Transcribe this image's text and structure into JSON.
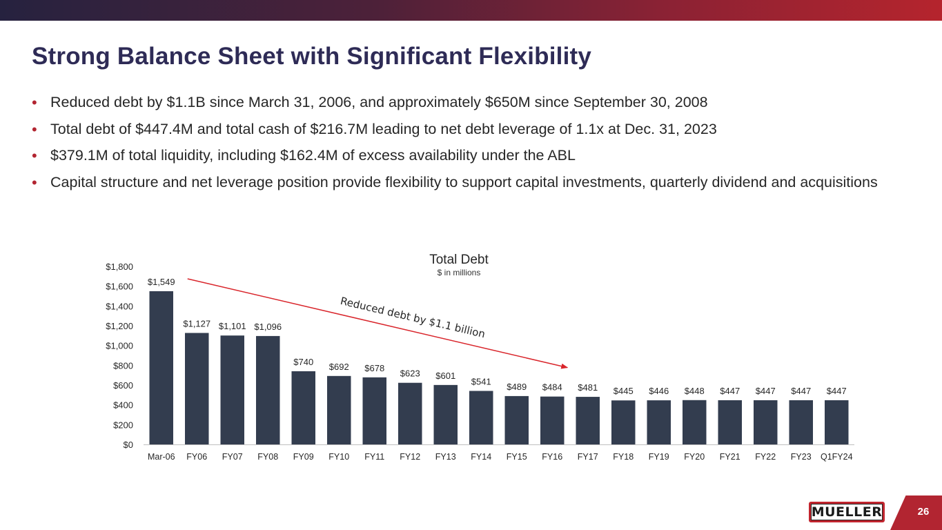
{
  "slide": {
    "title": "Strong Balance Sheet with Significant Flexibility",
    "bullets": [
      "Reduced debt by $1.1B since March 31, 2006, and approximately $650M since September 30, 2008",
      "Total debt of $447.4M and total cash of $216.7M leading to net debt leverage of 1.1x at Dec. 31, 2023",
      "$379.1M of total liquidity, including $162.4M of excess availability under the ABL",
      "Capital structure and net leverage position provide flexibility to support capital investments, quarterly dividend and acquisitions"
    ],
    "logo_text": "MUELLER",
    "page_number": "26"
  },
  "colors": {
    "title": "#2e2b56",
    "bar": "#333d4f",
    "accent": "#b22531",
    "arrow": "#d9252b"
  },
  "chart_data": {
    "type": "bar",
    "title": "Total Debt",
    "subtitle": "$ in millions",
    "xlabel": "",
    "ylabel": "",
    "ylim": [
      0,
      1800
    ],
    "y_ticks": [
      0,
      200,
      400,
      600,
      800,
      1000,
      1200,
      1400,
      1600,
      1800
    ],
    "y_tick_labels": [
      "$0",
      "$200",
      "$400",
      "$600",
      "$800",
      "$1,000",
      "$1,200",
      "$1,400",
      "$1,600",
      "$1,800"
    ],
    "grid": false,
    "categories": [
      "Mar-06",
      "FY06",
      "FY07",
      "FY08",
      "FY09",
      "FY10",
      "FY11",
      "FY12",
      "FY13",
      "FY14",
      "FY15",
      "FY16",
      "FY17",
      "FY18",
      "FY19",
      "FY20",
      "FY21",
      "FY22",
      "FY23",
      "Q1FY24"
    ],
    "values": [
      1549,
      1127,
      1101,
      1096,
      740,
      692,
      678,
      623,
      601,
      541,
      489,
      484,
      481,
      445,
      446,
      448,
      447,
      447,
      447,
      447
    ],
    "data_labels": [
      "$1,549",
      "$1,127",
      "$1,101",
      "$1,096",
      "$740",
      "$692",
      "$678",
      "$623",
      "$601",
      "$541",
      "$489",
      "$484",
      "$481",
      "$445",
      "$446",
      "$448",
      "$447",
      "$447",
      "$447",
      "$447"
    ],
    "annotation": {
      "text": "Reduced debt by $1.1 billion",
      "from_category": "Mar-06",
      "to_category": "FY16"
    }
  }
}
